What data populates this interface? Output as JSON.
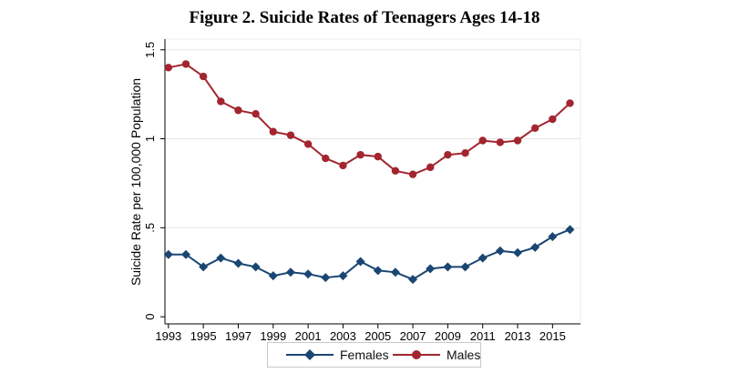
{
  "chart_data": {
    "type": "line",
    "title": "Figure 2. Suicide Rates of Teenagers Ages 14-18",
    "xlabel": "",
    "ylabel": "Suicide Rate per 100,000 Population",
    "x": [
      1993,
      1994,
      1995,
      1996,
      1997,
      1998,
      1999,
      2000,
      2001,
      2002,
      2003,
      2004,
      2005,
      2006,
      2007,
      2008,
      2009,
      2010,
      2011,
      2012,
      2013,
      2014,
      2015,
      2016
    ],
    "xticks": [
      1993,
      1995,
      1997,
      1999,
      2001,
      2003,
      2005,
      2007,
      2009,
      2011,
      2013,
      2015
    ],
    "yticks": [
      0,
      0.5,
      1,
      1.5
    ],
    "ytick_labels": [
      "0",
      ".5",
      "1",
      "1.5"
    ],
    "xlim": [
      1992.8,
      2016.6
    ],
    "ylim": [
      -0.04,
      1.56
    ],
    "grid": "horizontal",
    "legend_position": "bottom",
    "series": [
      {
        "name": "Females",
        "color": "#1a4672",
        "marker": "diamond",
        "values": [
          0.35,
          0.35,
          0.28,
          0.33,
          0.3,
          0.28,
          0.23,
          0.25,
          0.24,
          0.22,
          0.23,
          0.31,
          0.26,
          0.25,
          0.21,
          0.27,
          0.28,
          0.28,
          0.33,
          0.37,
          0.36,
          0.39,
          0.45,
          0.49
        ]
      },
      {
        "name": "Males",
        "color": "#a3252f",
        "marker": "circle",
        "values": [
          1.4,
          1.42,
          1.35,
          1.21,
          1.16,
          1.14,
          1.04,
          1.02,
          0.97,
          0.89,
          0.85,
          0.91,
          0.9,
          0.82,
          0.8,
          0.84,
          0.91,
          0.92,
          0.99,
          0.98,
          0.99,
          1.06,
          1.11,
          1.2
        ]
      }
    ]
  }
}
